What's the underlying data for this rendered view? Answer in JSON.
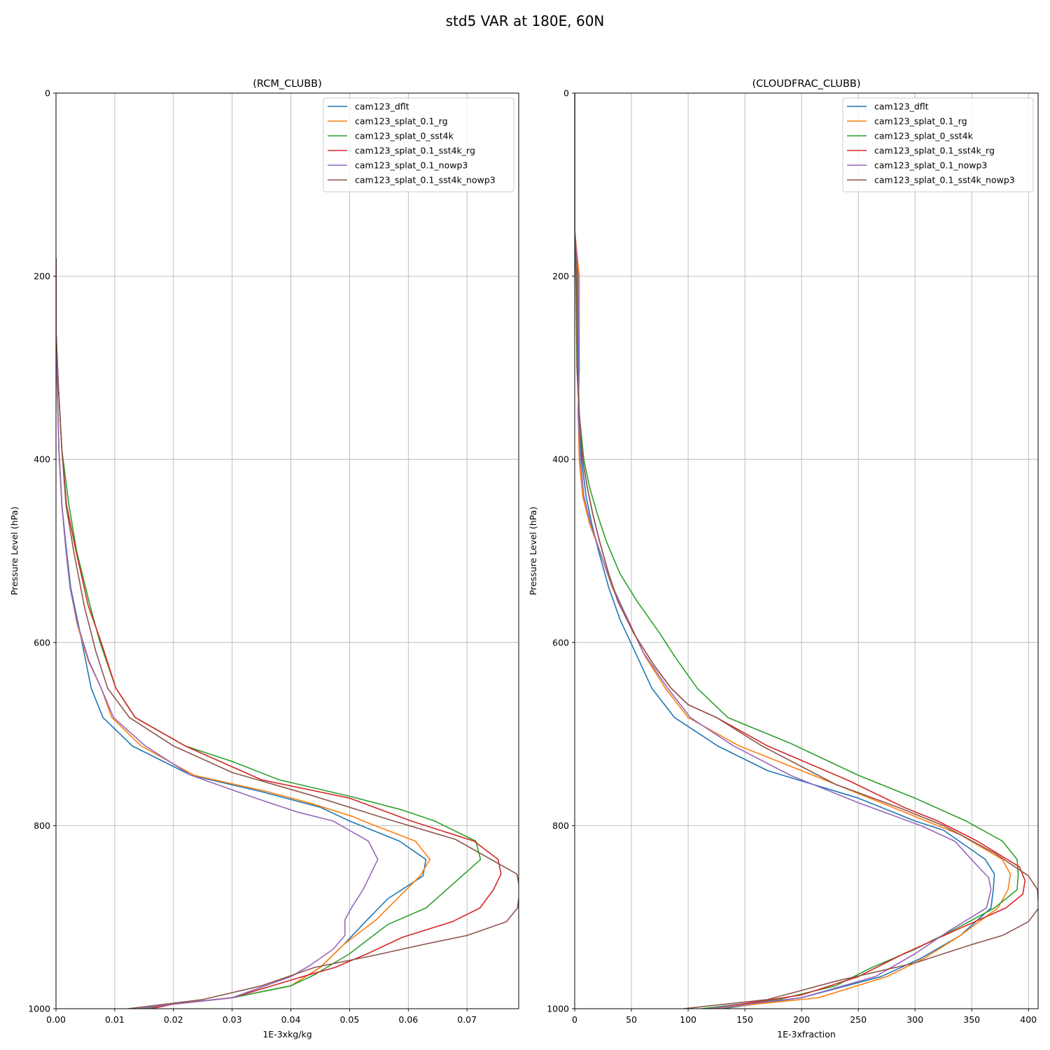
{
  "figure_title": "std5 VAR at 180E, 60N",
  "chart_data": [
    {
      "type": "line",
      "title": "(RCM_CLUBB)",
      "xlabel": "1E-3xkg/kg",
      "ylabel": "Pressure Level (hPa)",
      "xlim": [
        0,
        0.0788
      ],
      "ylim": [
        1000,
        0
      ],
      "xticks": [
        0,
        0.01,
        0.02,
        0.03,
        0.04,
        0.05,
        0.06,
        0.07
      ],
      "xtick_labels": [
        "0.00",
        "0.01",
        "0.02",
        "0.03",
        "0.04",
        "0.05",
        "0.06",
        "0.07"
      ],
      "yticks": [
        0,
        200,
        400,
        600,
        800,
        1000
      ],
      "ytick_labels": [
        "0",
        "200",
        "400",
        "600",
        "800",
        "1000"
      ],
      "grid": true,
      "legend_loc": "upper right",
      "series": [
        {
          "name": "cam123_dflt",
          "color": "#1f77b4",
          "x": [
            0,
            0,
            0.0002,
            0.0005,
            0.001,
            0.0018,
            0.0025,
            0.0038,
            0.006,
            0.008,
            0.013,
            0.023,
            0.035,
            0.045,
            0.05,
            0.0585,
            0.063,
            0.0625,
            0.0565,
            0.053,
            0.049,
            0.045,
            0.04,
            0.03,
            0.02,
            0.0145
          ],
          "y": [
            180,
            260,
            320,
            390,
            450,
            500,
            540,
            580,
            650,
            682,
            713,
            745,
            763,
            780,
            795,
            817,
            837,
            855,
            880,
            903,
            930,
            955,
            975,
            988,
            995,
            1000
          ]
        },
        {
          "name": "cam123_splat_0.1_rg",
          "color": "#ff7f0e",
          "x": [
            0,
            0,
            0.0002,
            0.0005,
            0.001,
            0.0017,
            0.0024,
            0.0036,
            0.0055,
            0.0077,
            0.0095,
            0.0145,
            0.0235,
            0.036,
            0.043,
            0.0505,
            0.0523,
            0.0612,
            0.0637,
            0.062,
            0.0545,
            0.049,
            0.045,
            0.04,
            0.03,
            0.02,
            0.0155
          ],
          "y": [
            180,
            260,
            320,
            390,
            450,
            500,
            540,
            580,
            620,
            650,
            682,
            713,
            745,
            763,
            775,
            790,
            795,
            817,
            837,
            855,
            903,
            930,
            955,
            975,
            988,
            995,
            1000
          ]
        },
        {
          "name": "cam123_splat_0_sst4k",
          "color": "#2ca02c",
          "x": [
            0,
            0,
            0.0004,
            0.001,
            0.0022,
            0.0035,
            0.0058,
            0.0075,
            0.0102,
            0.0135,
            0.022,
            0.03,
            0.038,
            0.05,
            0.059,
            0.0645,
            0.0715,
            0.0723,
            0.063,
            0.0565,
            0.05,
            0.044,
            0.04,
            0.03,
            0.02,
            0.015
          ],
          "y": [
            180,
            260,
            320,
            390,
            450,
            500,
            560,
            600,
            650,
            682,
            713,
            730,
            750,
            768,
            783,
            795,
            817,
            837,
            890,
            908,
            940,
            963,
            975,
            988,
            995,
            1000
          ]
        },
        {
          "name": "cam123_splat_0.1_sst4k_rg",
          "color": "#d62728",
          "x": [
            0,
            0,
            0.0004,
            0.001,
            0.0018,
            0.0034,
            0.0055,
            0.0077,
            0.0102,
            0.0135,
            0.022,
            0.035,
            0.05,
            0.0605,
            0.0712,
            0.0753,
            0.0758,
            0.0745,
            0.0722,
            0.0675,
            0.059,
            0.053,
            0.0475,
            0.042,
            0.03,
            0.02,
            0.0162
          ],
          "y": [
            180,
            260,
            320,
            390,
            450,
            500,
            560,
            600,
            650,
            682,
            713,
            750,
            770,
            795,
            817,
            837,
            853,
            870,
            890,
            905,
            922,
            940,
            955,
            965,
            988,
            995,
            1000
          ]
        },
        {
          "name": "cam123_splat_0.1_nowp3",
          "color": "#9467bd",
          "x": [
            0,
            0,
            0.0002,
            0.0005,
            0.001,
            0.0017,
            0.0024,
            0.0037,
            0.0056,
            0.0077,
            0.0098,
            0.0152,
            0.023,
            0.034,
            0.041,
            0.0472,
            0.0532,
            0.0548,
            0.0523,
            0.0503,
            0.0492,
            0.0492,
            0.0472,
            0.0432,
            0.04,
            0.03,
            0.02,
            0.014
          ],
          "y": [
            180,
            260,
            320,
            390,
            450,
            500,
            540,
            580,
            620,
            650,
            682,
            713,
            745,
            770,
            785,
            795,
            817,
            837,
            870,
            890,
            903,
            920,
            935,
            953,
            965,
            988,
            995,
            1000
          ]
        },
        {
          "name": "cam123_splat_0.1_sst4k_nowp3",
          "color": "#8c564b",
          "x": [
            0,
            0,
            0.0004,
            0.001,
            0.0017,
            0.003,
            0.0048,
            0.0068,
            0.0088,
            0.0125,
            0.02,
            0.03,
            0.0435,
            0.0575,
            0.068,
            0.0785,
            0.079,
            0.0786,
            0.0767,
            0.07,
            0.0625,
            0.054,
            0.044,
            0.035,
            0.025,
            0.0123
          ],
          "y": [
            180,
            260,
            320,
            390,
            450,
            500,
            560,
            610,
            650,
            682,
            713,
            742,
            767,
            795,
            815,
            853,
            870,
            890,
            905,
            920,
            930,
            942,
            955,
            975,
            990,
            1000
          ]
        }
      ]
    },
    {
      "type": "line",
      "title": "(CLOUDFRAC_CLUBB)",
      "xlabel": "1E-3xfraction",
      "ylabel": "Pressure Level (hPa)",
      "xlim": [
        0,
        408.5
      ],
      "ylim": [
        1000,
        0
      ],
      "xticks": [
        0,
        50,
        100,
        150,
        200,
        250,
        300,
        350,
        400
      ],
      "xtick_labels": [
        "0",
        "50",
        "100",
        "150",
        "200",
        "250",
        "300",
        "350",
        "400"
      ],
      "yticks": [
        0,
        200,
        400,
        600,
        800,
        1000
      ],
      "ytick_labels": [
        "0",
        "200",
        "400",
        "600",
        "800",
        "1000"
      ],
      "grid": true,
      "legend_loc": "upper right",
      "series": [
        {
          "name": "cam123_dflt",
          "color": "#1f77b4",
          "x": [
            0,
            0,
            3,
            3,
            4,
            6,
            10,
            15,
            21,
            30,
            40,
            55,
            68,
            88,
            126,
            170,
            250,
            300,
            325,
            362,
            370,
            369,
            367,
            340,
            305,
            270,
            200,
            130
          ],
          "y": [
            0,
            150,
            200,
            300,
            350,
            400,
            440,
            470,
            500,
            540,
            575,
            615,
            650,
            682,
            713,
            740,
            770,
            795,
            805,
            837,
            853,
            870,
            890,
            920,
            945,
            965,
            988,
            1000
          ]
        },
        {
          "name": "cam123_splat_0.1_rg",
          "color": "#ff7f0e",
          "x": [
            0,
            0,
            4,
            4,
            3,
            4,
            7,
            13,
            22,
            33,
            47,
            62,
            80,
            100,
            145,
            200,
            280,
            310,
            340,
            377,
            384,
            382,
            373,
            340,
            308,
            275,
            215,
            120
          ],
          "y": [
            0,
            150,
            200,
            300,
            350,
            400,
            440,
            470,
            500,
            540,
            575,
            615,
            650,
            682,
            713,
            740,
            780,
            795,
            810,
            837,
            853,
            870,
            890,
            920,
            945,
            965,
            988,
            1000
          ]
        },
        {
          "name": "cam123_splat_0_sst4k",
          "color": "#2ca02c",
          "x": [
            0,
            0,
            1,
            2,
            4,
            8,
            13,
            20,
            28,
            40,
            55,
            75,
            88,
            108,
            135,
            190,
            250,
            300,
            345,
            377,
            390,
            391,
            390,
            370,
            340,
            300,
            262,
            230,
            180,
            112
          ],
          "y": [
            0,
            150,
            200,
            300,
            350,
            400,
            430,
            460,
            490,
            525,
            555,
            590,
            615,
            650,
            682,
            710,
            745,
            770,
            795,
            817,
            837,
            853,
            870,
            890,
            910,
            935,
            955,
            975,
            990,
            1000
          ]
        },
        {
          "name": "cam123_splat_0.1_sst4k_rg",
          "color": "#d62728",
          "x": [
            0,
            0,
            2,
            2,
            4,
            7,
            11,
            16,
            22,
            30,
            38,
            52,
            70,
            85,
            100,
            125,
            170,
            240,
            290,
            320,
            355,
            392,
            397,
            395,
            380,
            340,
            290,
            250,
            200,
            120
          ],
          "y": [
            0,
            150,
            200,
            300,
            350,
            400,
            430,
            460,
            490,
            525,
            555,
            590,
            625,
            650,
            668,
            682,
            713,
            750,
            780,
            795,
            817,
            845,
            860,
            875,
            890,
            912,
            940,
            965,
            985,
            1000
          ]
        },
        {
          "name": "cam123_splat_0.1_nowp3",
          "color": "#9467bd",
          "x": [
            0,
            0,
            3,
            4,
            3,
            5,
            8,
            14,
            22,
            32,
            45,
            60,
            82,
            102,
            140,
            190,
            250,
            305,
            335,
            352,
            365,
            367,
            363,
            330,
            300,
            265,
            200,
            118
          ],
          "y": [
            0,
            150,
            200,
            300,
            350,
            400,
            440,
            470,
            500,
            535,
            570,
            610,
            650,
            682,
            713,
            745,
            775,
            800,
            817,
            840,
            857,
            870,
            890,
            915,
            940,
            965,
            988,
            1000
          ]
        },
        {
          "name": "cam123_splat_0.1_sst4k_nowp3",
          "color": "#8c564b",
          "x": [
            0,
            0,
            2,
            2,
            4,
            7,
            11,
            16,
            22,
            30,
            38,
            52,
            70,
            85,
            100,
            125,
            165,
            230,
            285,
            325,
            370,
            400,
            408,
            409,
            400,
            377,
            350,
            300,
            230,
            170,
            96
          ],
          "y": [
            0,
            150,
            200,
            300,
            350,
            400,
            430,
            460,
            490,
            525,
            555,
            590,
            625,
            650,
            668,
            682,
            713,
            755,
            780,
            800,
            830,
            855,
            870,
            890,
            905,
            920,
            930,
            950,
            970,
            990,
            1000
          ]
        }
      ]
    }
  ]
}
